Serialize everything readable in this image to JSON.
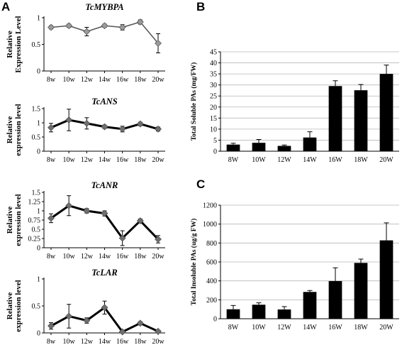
{
  "panel_labels": [
    "A",
    "B",
    "C"
  ],
  "chart_data": [
    {
      "type": "line",
      "panel": "A",
      "title": "TcMYBPA",
      "ylabel": [
        "Relative",
        "Expression Level"
      ],
      "categories": [
        "8w",
        "10w",
        "12w",
        "14w",
        "16w",
        "18w",
        "20w"
      ],
      "values": [
        0.82,
        0.85,
        0.74,
        0.85,
        0.82,
        0.92,
        0.52
      ],
      "errors": [
        0.03,
        0.03,
        0.08,
        0.03,
        0.05,
        0.04,
        0.18
      ],
      "ylim": [
        0,
        1
      ],
      "yticks": [
        0,
        0.5,
        1
      ],
      "marker_color": "#9a9a9a",
      "line_color": "#555555",
      "line_width": "thin"
    },
    {
      "type": "line",
      "panel": "A",
      "title": "TcANS",
      "ylabel": [
        "Relative",
        "expression level"
      ],
      "categories": [
        "8w",
        "10w",
        "12w",
        "14w",
        "16w",
        "18w",
        "20w"
      ],
      "values": [
        0.83,
        1.1,
        0.98,
        0.86,
        0.78,
        0.96,
        0.78
      ],
      "errors": [
        0.15,
        0.38,
        0.2,
        0.06,
        0.1,
        0.06,
        0.07
      ],
      "ylim": [
        0,
        1.5
      ],
      "yticks": [
        0,
        0.5,
        1,
        1.5
      ],
      "marker_color": "#6e6e6e",
      "line_color": "#000000",
      "line_width": "thick"
    },
    {
      "type": "line",
      "panel": "A",
      "title": "TcANR",
      "ylabel": [
        "Relative",
        "expression level"
      ],
      "categories": [
        "8w",
        "10w",
        "12w",
        "14w",
        "16w",
        "18w",
        "20w"
      ],
      "values": [
        0.8,
        1.14,
        1.0,
        0.93,
        0.26,
        0.73,
        0.23
      ],
      "errors": [
        0.12,
        0.27,
        0.06,
        0.07,
        0.2,
        0.05,
        0.1
      ],
      "ylim": [
        0,
        1.5
      ],
      "yticks": [
        0,
        0.25,
        0.5,
        0.75,
        1,
        1.25,
        1.5
      ],
      "marker_color": "#6e6e6e",
      "line_color": "#000000",
      "line_width": "thick"
    },
    {
      "type": "line",
      "panel": "A",
      "title": "TcLAR",
      "ylabel": [
        "Relative",
        "expression level"
      ],
      "categories": [
        "8w",
        "10w",
        "12w",
        "14w",
        "16w",
        "18w",
        "20w"
      ],
      "values": [
        0.13,
        0.31,
        0.23,
        0.47,
        0.02,
        0.18,
        0.03
      ],
      "errors": [
        0.06,
        0.22,
        0.05,
        0.12,
        0.01,
        0.03,
        0.01
      ],
      "ylim": [
        0,
        1
      ],
      "yticks": [
        0,
        0.5,
        1
      ],
      "marker_color": "#6e6e6e",
      "line_color": "#000000",
      "line_width": "thick"
    },
    {
      "type": "bar",
      "panel": "B",
      "ylabel": "Total Soluble PAs (mg/FW)",
      "categories": [
        "8W",
        "10W",
        "12W",
        "14W",
        "16W",
        "18W",
        "20W"
      ],
      "values": [
        3.0,
        3.8,
        2.4,
        6.2,
        29.5,
        27.6,
        35.0
      ],
      "errors": [
        0.6,
        1.5,
        0.4,
        2.6,
        2.4,
        2.6,
        4.0
      ],
      "ylim": [
        0,
        45
      ],
      "yticks": [
        0,
        5,
        10,
        15,
        20,
        25,
        30,
        35,
        40,
        45
      ],
      "bar_color": "#000000",
      "grid": true
    },
    {
      "type": "bar",
      "panel": "C",
      "ylabel": "Total Insoluble PAs (ug/g FW)",
      "categories": [
        "8W",
        "10W",
        "12W",
        "14W",
        "16W",
        "18W",
        "20W"
      ],
      "values": [
        100,
        148,
        98,
        283,
        398,
        590,
        828
      ],
      "errors": [
        40,
        20,
        30,
        15,
        140,
        40,
        185
      ],
      "ylim": [
        0,
        1200
      ],
      "yticks": [
        0,
        200,
        400,
        600,
        800,
        1000,
        1200
      ],
      "bar_color": "#000000",
      "grid": true
    }
  ]
}
